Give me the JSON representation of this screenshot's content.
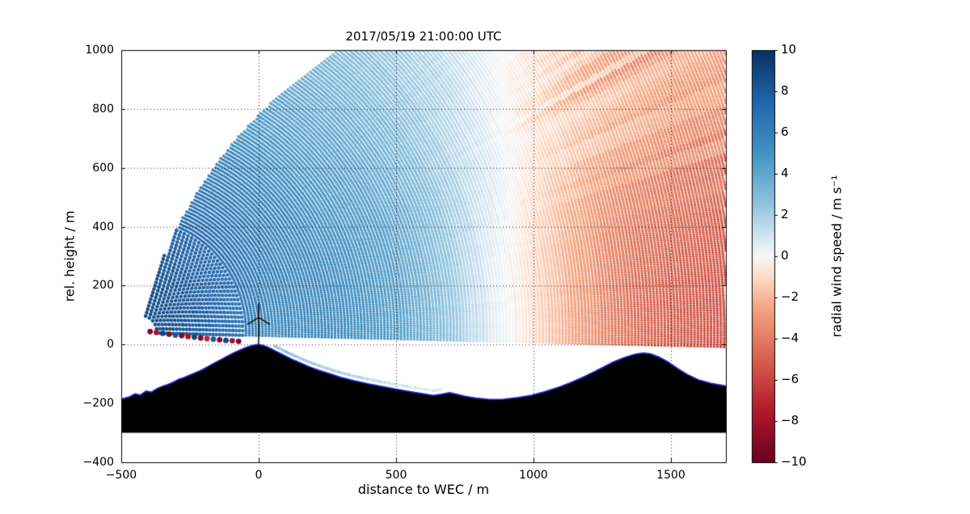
{
  "chart_data": {
    "type": "heatmap",
    "title": "2017/05/19 21:00:00 UTC",
    "xlabel": "distance to WEC / m",
    "ylabel": "rel. height / m",
    "xlim": [
      -500,
      1700
    ],
    "ylim": [
      -400,
      1000
    ],
    "xticks": [
      -500,
      0,
      500,
      1000,
      1500
    ],
    "yticks": [
      -400,
      -200,
      0,
      200,
      400,
      600,
      800,
      1000
    ],
    "grid": true,
    "colorbar": {
      "label": "radial wind speed / m s⁻¹",
      "vmin": -10,
      "vmax": 10,
      "ticks": [
        10,
        8,
        6,
        4,
        2,
        0,
        -2,
        -4,
        -6,
        -8,
        -10
      ],
      "colormap": "RdBu",
      "stops": [
        [
          -10,
          "#67001f"
        ],
        [
          -7.5,
          "#b2182b"
        ],
        [
          -5,
          "#d6604d"
        ],
        [
          -2.5,
          "#f4a582"
        ],
        [
          -1,
          "#fddbc7"
        ],
        [
          0,
          "#f7f7f7"
        ],
        [
          1,
          "#d1e5f0"
        ],
        [
          2.5,
          "#92c5de"
        ],
        [
          5,
          "#4393c3"
        ],
        [
          7.5,
          "#2166ac"
        ],
        [
          10,
          "#053061"
        ]
      ]
    },
    "scan": {
      "origin": [
        -430,
        40
      ],
      "r_min": 60,
      "r_max": 2400,
      "gate_spacing": 12,
      "elev_min_deg": -1.3,
      "max_elev_envelope": [
        [
          100,
          78
        ],
        [
          300,
          71
        ],
        [
          700,
          63
        ],
        [
          1150,
          54
        ],
        [
          1600,
          47
        ],
        [
          2400,
          38
        ]
      ]
    },
    "wind_field_samples": [
      [
        -420,
        60,
        9.5,
        150
      ],
      [
        -400,
        200,
        9.2,
        150
      ],
      [
        -360,
        420,
        8.6,
        180
      ],
      [
        -300,
        620,
        7.6,
        200
      ],
      [
        -180,
        850,
        5.2,
        250
      ],
      [
        -250,
        150,
        8.6,
        180
      ],
      [
        -150,
        300,
        7.6,
        200
      ],
      [
        -50,
        550,
        6.2,
        250
      ],
      [
        0,
        150,
        6.6,
        200
      ],
      [
        60,
        80,
        3.6,
        110
      ],
      [
        200,
        250,
        6.3,
        250
      ],
      [
        350,
        400,
        5.9,
        300
      ],
      [
        300,
        120,
        5.6,
        250
      ],
      [
        600,
        300,
        5.1,
        300
      ],
      [
        550,
        120,
        4.1,
        250
      ],
      [
        750,
        80,
        2.6,
        200
      ],
      [
        500,
        600,
        4.1,
        300
      ],
      [
        250,
        700,
        4.1,
        300
      ],
      [
        100,
        950,
        2.9,
        300
      ],
      [
        450,
        950,
        1.9,
        300
      ],
      [
        700,
        800,
        1.6,
        300
      ],
      [
        850,
        350,
        1.2,
        250
      ],
      [
        900,
        120,
        0.4,
        200
      ],
      [
        950,
        600,
        0.2,
        250
      ],
      [
        900,
        950,
        0.1,
        300
      ],
      [
        975,
        80,
        -0.4,
        150
      ],
      [
        975,
        300,
        -0.3,
        150
      ],
      [
        1050,
        150,
        -3.0,
        200
      ],
      [
        1100,
        400,
        -3.3,
        250
      ],
      [
        1250,
        300,
        -4.8,
        250
      ],
      [
        1400,
        200,
        -5.5,
        250
      ],
      [
        1550,
        300,
        -6.6,
        250
      ],
      [
        1700,
        250,
        -5.9,
        250
      ],
      [
        1650,
        500,
        -5.3,
        250
      ],
      [
        1500,
        650,
        -4.1,
        300
      ],
      [
        1700,
        750,
        -3.6,
        300
      ],
      [
        1300,
        600,
        -3.6,
        300
      ],
      [
        1200,
        850,
        -2.1,
        300
      ],
      [
        1500,
        950,
        -2.2,
        300
      ],
      [
        1050,
        800,
        -1.3,
        300
      ],
      [
        1600,
        100,
        -5.3,
        250
      ],
      [
        1150,
        100,
        -3.9,
        200
      ]
    ],
    "terrain_profile": [
      [
        -500,
        -186
      ],
      [
        -470,
        -178
      ],
      [
        -450,
        -168
      ],
      [
        -430,
        -172
      ],
      [
        -410,
        -158
      ],
      [
        -390,
        -162
      ],
      [
        -370,
        -150
      ],
      [
        -350,
        -142
      ],
      [
        -330,
        -136
      ],
      [
        -310,
        -128
      ],
      [
        -290,
        -118
      ],
      [
        -270,
        -112
      ],
      [
        -250,
        -104
      ],
      [
        -230,
        -96
      ],
      [
        -210,
        -88
      ],
      [
        -190,
        -78
      ],
      [
        -170,
        -68
      ],
      [
        -150,
        -58
      ],
      [
        -130,
        -48
      ],
      [
        -110,
        -38
      ],
      [
        -90,
        -28
      ],
      [
        -70,
        -20
      ],
      [
        -50,
        -12
      ],
      [
        -30,
        -5
      ],
      [
        -10,
        -1
      ],
      [
        0,
        0
      ],
      [
        15,
        -3
      ],
      [
        35,
        -10
      ],
      [
        60,
        -22
      ],
      [
        90,
        -36
      ],
      [
        120,
        -50
      ],
      [
        150,
        -62
      ],
      [
        185,
        -76
      ],
      [
        220,
        -88
      ],
      [
        260,
        -100
      ],
      [
        300,
        -112
      ],
      [
        350,
        -124
      ],
      [
        400,
        -134
      ],
      [
        450,
        -143
      ],
      [
        500,
        -152
      ],
      [
        550,
        -160
      ],
      [
        600,
        -168
      ],
      [
        635,
        -173
      ],
      [
        665,
        -169
      ],
      [
        695,
        -164
      ],
      [
        720,
        -169
      ],
      [
        750,
        -176
      ],
      [
        790,
        -182
      ],
      [
        840,
        -187
      ],
      [
        890,
        -186
      ],
      [
        940,
        -181
      ],
      [
        990,
        -173
      ],
      [
        1040,
        -161
      ],
      [
        1090,
        -146
      ],
      [
        1140,
        -128
      ],
      [
        1190,
        -107
      ],
      [
        1240,
        -84
      ],
      [
        1290,
        -60
      ],
      [
        1330,
        -45
      ],
      [
        1370,
        -33
      ],
      [
        1400,
        -29
      ],
      [
        1425,
        -32
      ],
      [
        1455,
        -42
      ],
      [
        1490,
        -60
      ],
      [
        1525,
        -82
      ],
      [
        1560,
        -102
      ],
      [
        1600,
        -120
      ],
      [
        1645,
        -132
      ],
      [
        1700,
        -141
      ]
    ],
    "terrain_base": -300,
    "terrain_outline_color": "#2222bb",
    "clutter_dots": [
      [
        -395,
        44,
        -9
      ],
      [
        -372,
        41,
        -8
      ],
      [
        -349,
        38,
        9
      ],
      [
        -326,
        35,
        -9
      ],
      [
        -303,
        32,
        8
      ],
      [
        -280,
        30,
        -9
      ],
      [
        -257,
        27,
        -8
      ],
      [
        -234,
        25,
        9
      ],
      [
        -211,
        22,
        -9
      ],
      [
        -188,
        20,
        -7
      ],
      [
        -165,
        18,
        8
      ],
      [
        -142,
        16,
        -9
      ],
      [
        -119,
        14,
        9
      ],
      [
        -96,
        13,
        -8
      ],
      [
        -73,
        11,
        -9
      ]
    ],
    "surface_strip": {
      "x_start": 60,
      "x_end": 660,
      "height_offset": 16,
      "v_start": 2.5,
      "v_end": 0.5
    },
    "turbine": {
      "x": 0,
      "base_height": 0,
      "hub_height": 92,
      "blade_length": 46
    }
  }
}
